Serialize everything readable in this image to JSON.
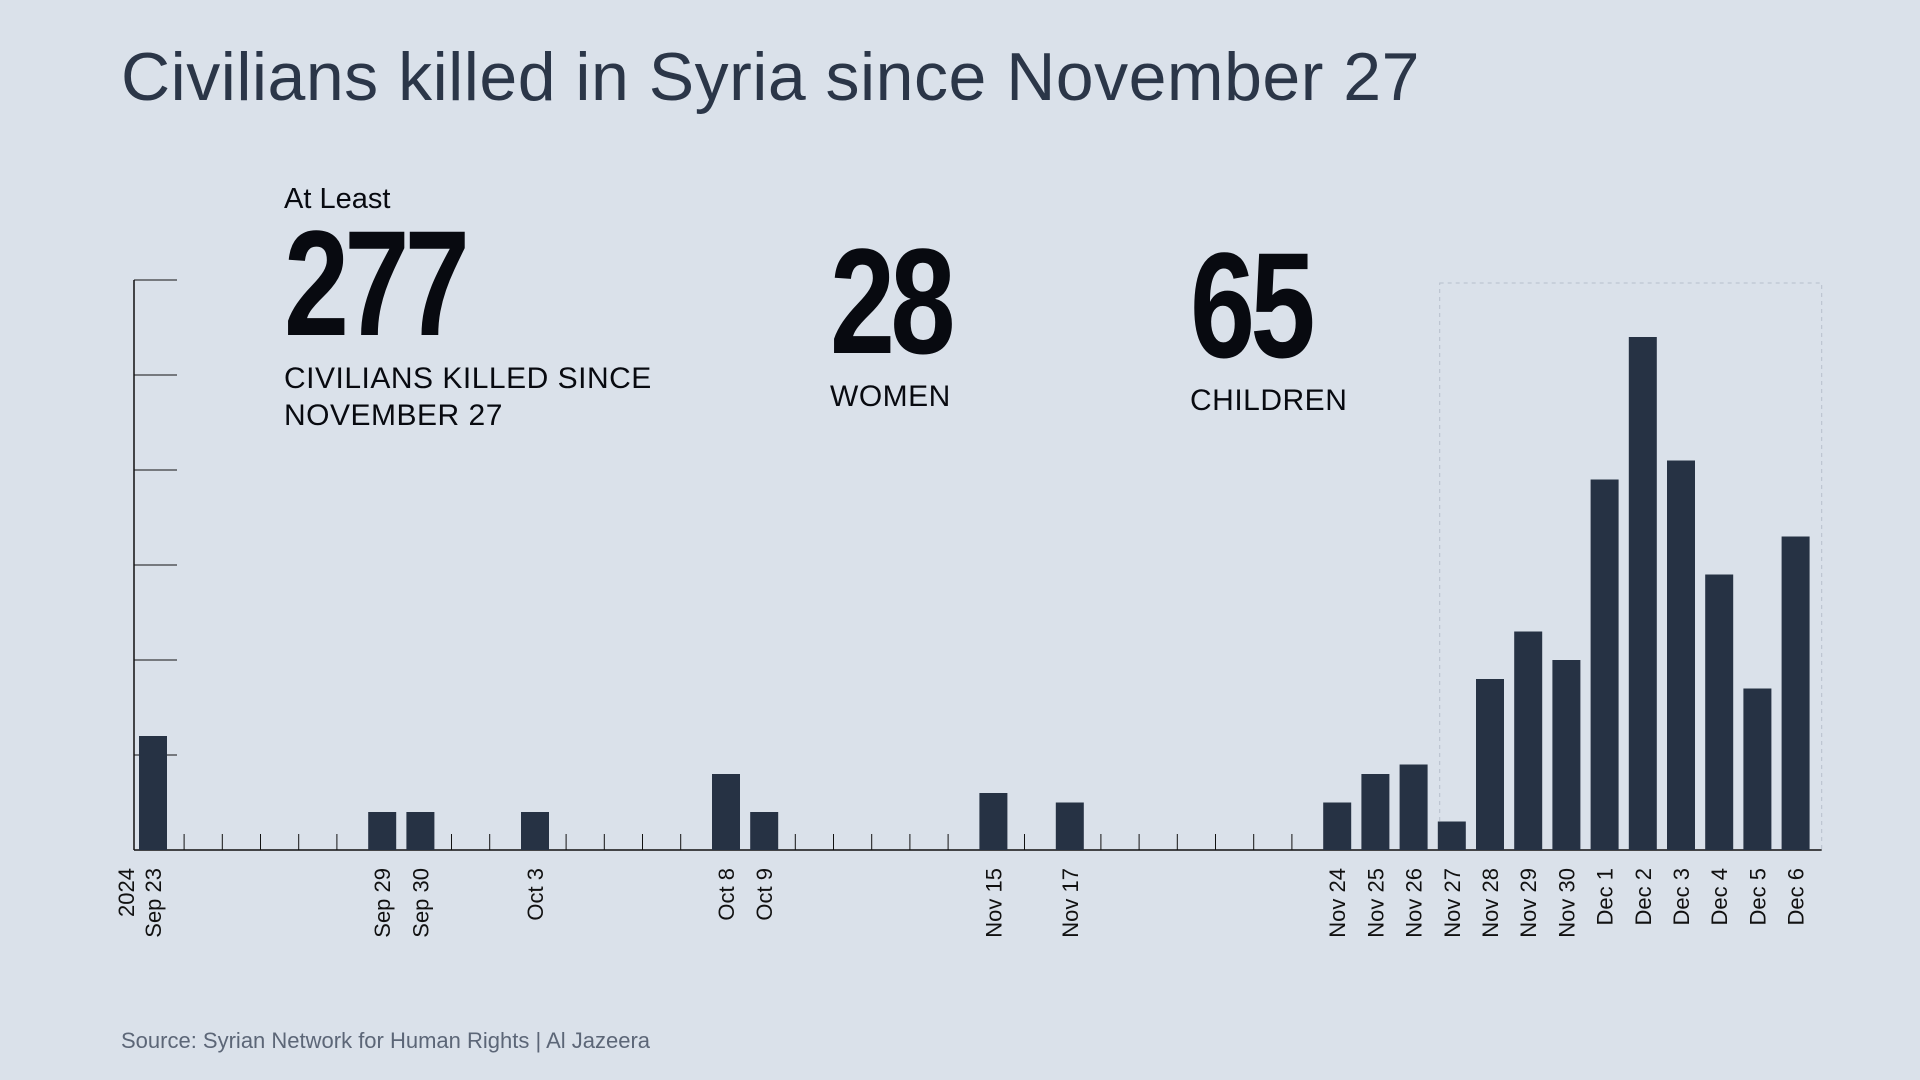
{
  "title": "Civilians killed in Syria since November 27",
  "stats": [
    {
      "prefix": "At Least",
      "value": "277",
      "label_lines": [
        "CIVILIANS KILLED SINCE",
        "NOVEMBER 27"
      ]
    },
    {
      "prefix": "",
      "value": "28",
      "label_lines": [
        "WOMEN"
      ]
    },
    {
      "prefix": "",
      "value": "65",
      "label_lines": [
        "CHILDREN"
      ]
    }
  ],
  "source": "Source: Syrian Network for Human Rights | Al Jazeera",
  "colors": {
    "background": "#dae1ea",
    "bar": "#263244",
    "text": "#080a10"
  },
  "chart_data": {
    "type": "bar",
    "year_label": "2024",
    "categories": [
      "Sep 23",
      "Sep 29",
      "Sep 30",
      "Oct 3",
      "Oct 8",
      "Oct 9",
      "Nov 15",
      "Nov 17",
      "Nov 24",
      "Nov 25",
      "Nov 26",
      "Nov 27",
      "Nov 28",
      "Nov 29",
      "Nov 30",
      "Dec 1",
      "Dec 2",
      "Dec 3",
      "Dec 4",
      "Dec 5",
      "Dec 6"
    ],
    "values": [
      12,
      4,
      4,
      4,
      8,
      4,
      6,
      5,
      5,
      8,
      9,
      3,
      18,
      23,
      20,
      39,
      54,
      41,
      29,
      17,
      33
    ],
    "ylim": [
      0,
      60
    ],
    "y_ticks": [
      0,
      10,
      20,
      30,
      40,
      50,
      60
    ],
    "highlight_from": "Nov 27",
    "grid": false
  }
}
